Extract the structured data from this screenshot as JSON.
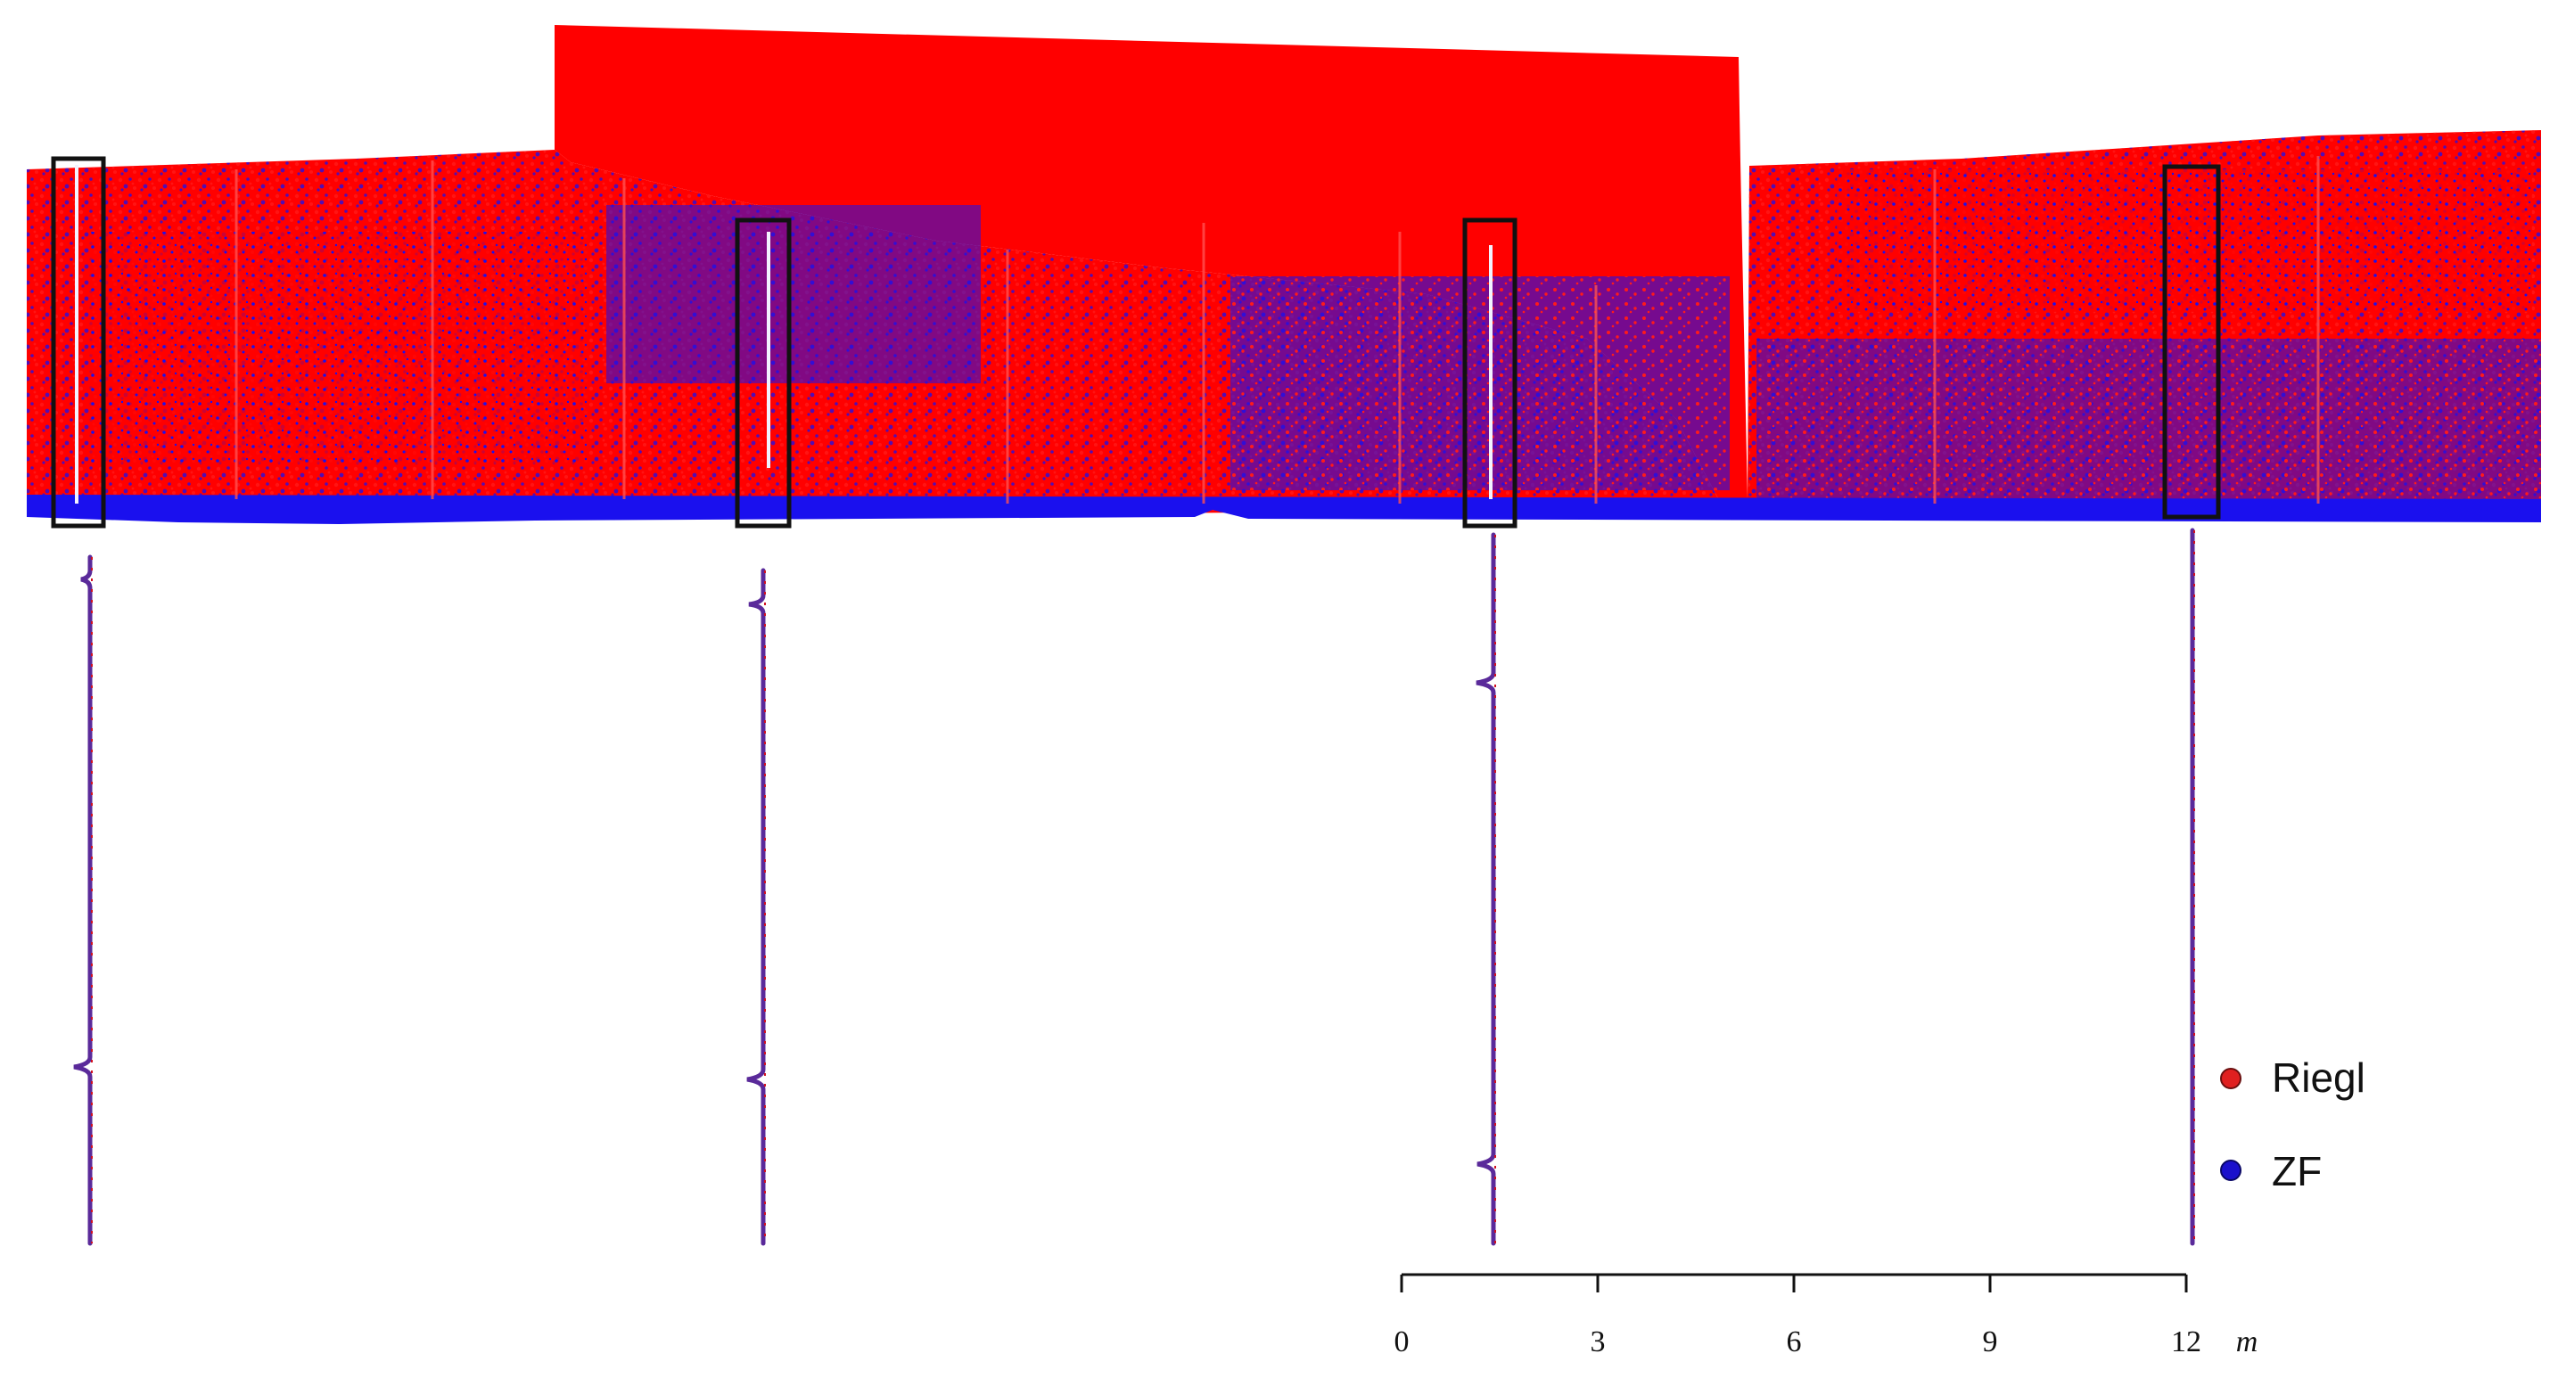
{
  "colors": {
    "riegl": "#ff0000",
    "zf": "#1a10ee",
    "frame": "#111111",
    "profile": "#5a2a7a"
  },
  "legend": {
    "items": [
      {
        "label": "Riegl",
        "color": "#e02020"
      },
      {
        "label": "ZF",
        "color": "#1a10cc"
      }
    ]
  },
  "scale_bar": {
    "ticks": [
      "0",
      "3",
      "6",
      "9",
      "12"
    ],
    "unit": "m"
  }
}
